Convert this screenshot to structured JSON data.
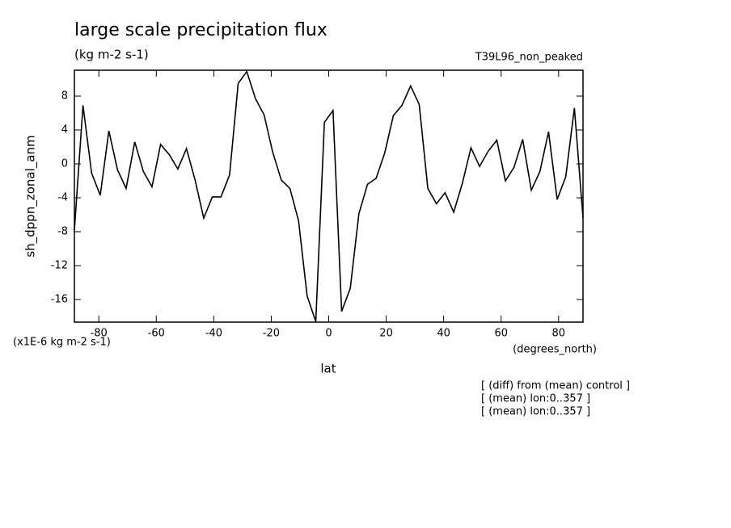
{
  "chart_data": {
    "type": "line",
    "title": "large scale precipitation flux",
    "subtitle": "(kg m-2 s-1)",
    "dataset": "T39L96_non_peaked",
    "y_label": "sh_dppn_zonal_anm",
    "y_units": "(x1E-6 kg m-2 s-1)",
    "x_label": "lat",
    "x_units": "(degrees_north)",
    "notes": [
      "[ (diff) from (mean) control ]",
      "[ (mean) lon:0..357 ]",
      "[ (mean) lon:0..357 ]"
    ],
    "x": [
      -88.5,
      -85.5,
      -82.5,
      -79.5,
      -76.5,
      -73.5,
      -70.5,
      -67.5,
      -64.5,
      -61.5,
      -58.5,
      -55.5,
      -52.5,
      -49.5,
      -46.5,
      -43.5,
      -40.5,
      -37.5,
      -34.5,
      -31.5,
      -28.5,
      -25.5,
      -22.5,
      -19.5,
      -16.5,
      -13.5,
      -10.5,
      -7.5,
      -4.5,
      -1.5,
      1.5,
      4.5,
      7.5,
      10.5,
      13.5,
      16.5,
      19.5,
      22.5,
      25.5,
      28.5,
      31.5,
      34.5,
      37.5,
      40.5,
      43.5,
      46.5,
      49.5,
      52.5,
      55.5,
      58.5,
      61.5,
      64.5,
      67.5,
      70.5,
      73.5,
      76.5,
      79.5,
      82.5,
      85.5,
      88.5
    ],
    "series": [
      {
        "name": "sh_dppn_zonal_anm",
        "color": "#000000",
        "values": [
          -7.8,
          6.9,
          -1.1,
          -3.7,
          3.9,
          -0.7,
          -2.9,
          2.6,
          -0.9,
          -2.7,
          2.3,
          1.1,
          -0.6,
          1.8,
          -1.9,
          -6.4,
          -3.9,
          -3.9,
          -1.3,
          9.5,
          10.9,
          7.7,
          5.8,
          1.4,
          -1.9,
          -2.9,
          -6.7,
          -15.6,
          -18.6,
          4.9,
          6.3,
          -17.4,
          -14.7,
          -5.9,
          -2.4,
          -1.7,
          1.3,
          5.7,
          6.9,
          9.2,
          7.0,
          -2.9,
          -4.7,
          -3.4,
          -5.7,
          -2.3,
          1.9,
          -0.3,
          1.5,
          2.8,
          -2.0,
          -0.4,
          2.9,
          -3.1,
          -0.9,
          3.8,
          -4.2,
          -1.5,
          6.6,
          -6.4
        ]
      }
    ],
    "xlim": [
      -88.5,
      88.5
    ],
    "ylim": [
      -18.67,
      11.05
    ],
    "xticks": [
      -80,
      -60,
      -40,
      -20,
      0,
      20,
      40,
      60,
      80
    ],
    "yticks": [
      -16,
      -12,
      -8,
      -4,
      0,
      4,
      8
    ]
  }
}
